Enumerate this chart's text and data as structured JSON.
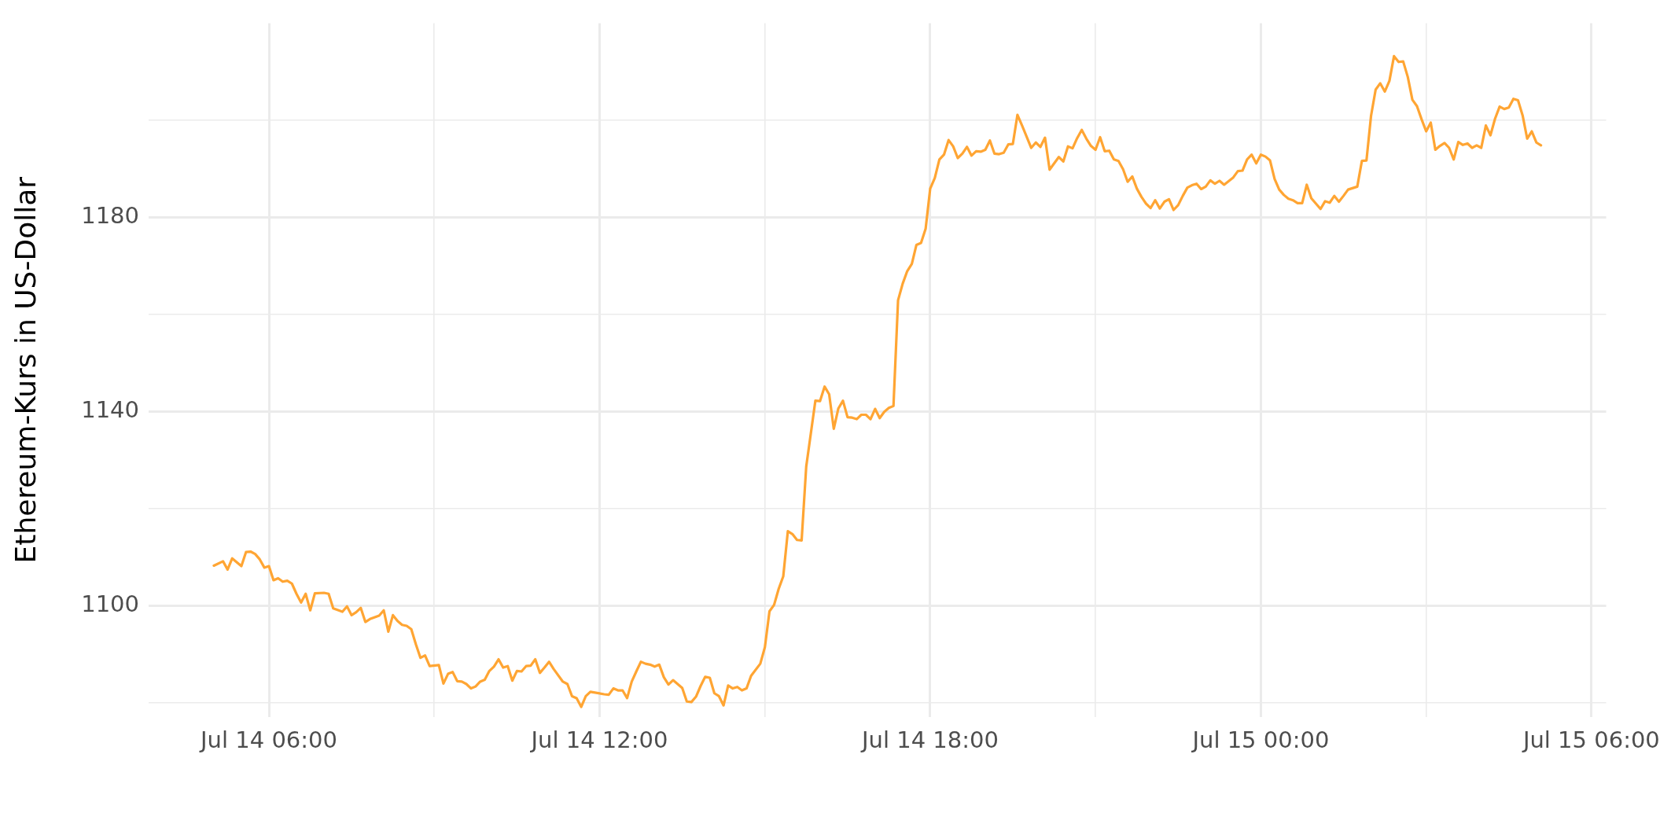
{
  "chart_data": {
    "type": "line",
    "ylabel": "Ethereum-Kurs in US-Dollar",
    "color": "#ffa533",
    "grid": true,
    "legend": false,
    "marker": "none",
    "line_style": "solid",
    "xlim": [
      "--07-14T03:49",
      "--07-15T06:16"
    ],
    "ylim": [
      1077,
      1220
    ],
    "xticks": [
      {
        "value": "--07-14T06:00",
        "label": "Jul 14 06:00"
      },
      {
        "value": "--07-14T09:00",
        "label": null
      },
      {
        "value": "--07-14T12:00",
        "label": "Jul 14 12:00"
      },
      {
        "value": "--07-14T15:00",
        "label": null
      },
      {
        "value": "--07-14T18:00",
        "label": "Jul 14 18:00"
      },
      {
        "value": "--07-14T21:00",
        "label": null
      },
      {
        "value": "--07-15T00:00",
        "label": "Jul 15 00:00"
      },
      {
        "value": "--07-15T03:00",
        "label": null
      },
      {
        "value": "--07-15T06:00",
        "label": "Jul 15 06:00"
      }
    ],
    "yticks": [
      {
        "value": 1080,
        "label": null
      },
      1100,
      {
        "value": 1120,
        "label": null
      },
      1140,
      {
        "value": 1160,
        "label": null
      },
      1180,
      {
        "value": 1200,
        "label": null
      }
    ],
    "x": [
      "--07-14T05:00",
      "--07-14T05:10",
      "--07-14T05:15",
      "--07-14T05:20",
      "--07-14T05:30",
      "--07-14T05:35",
      "--07-14T05:40",
      "--07-14T05:45",
      "--07-14T05:50",
      "--07-14T05:55",
      "--07-14T06:00",
      "--07-14T06:05",
      "--07-14T06:10",
      "--07-14T06:15",
      "--07-14T06:20",
      "--07-14T06:25",
      "--07-14T06:30",
      "--07-14T06:35",
      "--07-14T06:40",
      "--07-14T06:45",
      "--07-14T06:50",
      "--07-14T07:00",
      "--07-14T07:05",
      "--07-14T07:10",
      "--07-14T07:20",
      "--07-14T07:25",
      "--07-14T07:30",
      "--07-14T07:35",
      "--07-14T07:40",
      "--07-14T07:45",
      "--07-14T07:50",
      "--07-14T08:00",
      "--07-14T08:05",
      "--07-14T08:10",
      "--07-14T08:15",
      "--07-14T08:20",
      "--07-14T08:25",
      "--07-14T08:30",
      "--07-14T08:35",
      "--07-14T08:40",
      "--07-14T08:45",
      "--07-14T08:50",
      "--07-14T08:55",
      "--07-14T09:05",
      "--07-14T09:10",
      "--07-14T09:15",
      "--07-14T09:20",
      "--07-14T09:25",
      "--07-14T09:30",
      "--07-14T09:35",
      "--07-14T09:40",
      "--07-14T09:45",
      "--07-14T09:50",
      "--07-14T09:55",
      "--07-14T10:00",
      "--07-14T10:05",
      "--07-14T10:10",
      "--07-14T10:15",
      "--07-14T10:20",
      "--07-14T10:25",
      "--07-14T10:30",
      "--07-14T10:35",
      "--07-14T10:40",
      "--07-14T10:45",
      "--07-14T10:50",
      "--07-14T10:55",
      "--07-14T11:00",
      "--07-14T11:05",
      "--07-14T11:10",
      "--07-14T11:20",
      "--07-14T11:25",
      "--07-14T11:30",
      "--07-14T11:35",
      "--07-14T11:40",
      "--07-14T11:45",
      "--07-14T11:50",
      "--07-14T12:05",
      "--07-14T12:10",
      "--07-14T12:15",
      "--07-14T12:20",
      "--07-14T12:25",
      "--07-14T12:30",
      "--07-14T12:35",
      "--07-14T12:40",
      "--07-14T12:45",
      "--07-14T12:50",
      "--07-14T12:55",
      "--07-14T13:00",
      "--07-14T13:05",
      "--07-14T13:10",
      "--07-14T13:15",
      "--07-14T13:20",
      "--07-14T13:25",
      "--07-14T13:30",
      "--07-14T13:35",
      "--07-14T13:40",
      "--07-14T13:45",
      "--07-14T13:50",
      "--07-14T13:55",
      "--07-14T14:00",
      "--07-14T14:05",
      "--07-14T14:10",
      "--07-14T14:15",
      "--07-14T14:20",
      "--07-14T14:25",
      "--07-14T14:30",
      "--07-14T14:35",
      "--07-14T14:40",
      "--07-14T14:45",
      "--07-14T14:55",
      "--07-14T15:00",
      "--07-14T15:05",
      "--07-14T15:10",
      "--07-14T15:15",
      "--07-14T15:20",
      "--07-14T15:25",
      "--07-14T15:30",
      "--07-14T15:35",
      "--07-14T15:40",
      "--07-14T15:45",
      "--07-14T15:50",
      "--07-14T15:55",
      "--07-14T16:00",
      "--07-14T16:05",
      "--07-14T16:10",
      "--07-14T16:15",
      "--07-14T16:20",
      "--07-14T16:25",
      "--07-14T16:30",
      "--07-14T16:35",
      "--07-14T16:40",
      "--07-14T16:45",
      "--07-14T16:50",
      "--07-14T16:55",
      "--07-14T17:00",
      "--07-14T17:05",
      "--07-14T17:10",
      "--07-14T17:15",
      "--07-14T17:20",
      "--07-14T17:25",
      "--07-14T17:30",
      "--07-14T17:35",
      "--07-14T17:40",
      "--07-14T17:45",
      "--07-14T17:50",
      "--07-14T17:55",
      "--07-14T18:00",
      "--07-14T18:05",
      "--07-14T18:10",
      "--07-14T18:15",
      "--07-14T18:20",
      "--07-14T18:25",
      "--07-14T18:30",
      "--07-14T18:35",
      "--07-14T18:40",
      "--07-14T18:45",
      "--07-14T18:50",
      "--07-14T18:55",
      "--07-14T19:00",
      "--07-14T19:05",
      "--07-14T19:10",
      "--07-14T19:15",
      "--07-14T19:20",
      "--07-14T19:25",
      "--07-14T19:30",
      "--07-14T19:35",
      "--07-14T19:40",
      "--07-14T19:45",
      "--07-14T19:50",
      "--07-14T19:55",
      "--07-14T20:00",
      "--07-14T20:05",
      "--07-14T20:10",
      "--07-14T20:15",
      "--07-14T20:20",
      "--07-14T20:25",
      "--07-14T20:30",
      "--07-14T20:35",
      "--07-14T20:40",
      "--07-14T20:45",
      "--07-14T20:50",
      "--07-14T20:55",
      "--07-14T21:00",
      "--07-14T21:05",
      "--07-14T21:10",
      "--07-14T21:15",
      "--07-14T21:20",
      "--07-14T21:25",
      "--07-14T21:30",
      "--07-14T21:35",
      "--07-14T21:40",
      "--07-14T21:45",
      "--07-14T21:50",
      "--07-14T21:55",
      "--07-14T22:00",
      "--07-14T22:05",
      "--07-14T22:10",
      "--07-14T22:15",
      "--07-14T22:20",
      "--07-14T22:25",
      "--07-14T22:30",
      "--07-14T22:35",
      "--07-14T22:40",
      "--07-14T22:45",
      "--07-14T22:50",
      "--07-14T22:55",
      "--07-14T23:00",
      "--07-14T23:05",
      "--07-14T23:10",
      "--07-14T23:15",
      "--07-14T23:20",
      "--07-14T23:30",
      "--07-14T23:35",
      "--07-14T23:40",
      "--07-14T23:45",
      "--07-14T23:50",
      "--07-14T23:55",
      "--07-15T00:00",
      "--07-15T00:05",
      "--07-15T00:10",
      "--07-15T00:15",
      "--07-15T00:20",
      "--07-15T00:25",
      "--07-15T00:30",
      "--07-15T00:35",
      "--07-15T00:40",
      "--07-15T00:45",
      "--07-15T00:50",
      "--07-15T00:55",
      "--07-15T01:00",
      "--07-15T01:05",
      "--07-15T01:10",
      "--07-15T01:15",
      "--07-15T01:20",
      "--07-15T01:25",
      "--07-15T01:30",
      "--07-15T01:35",
      "--07-15T01:45",
      "--07-15T01:50",
      "--07-15T01:55",
      "--07-15T02:00",
      "--07-15T02:05",
      "--07-15T02:10",
      "--07-15T02:15",
      "--07-15T02:20",
      "--07-15T02:25",
      "--07-15T02:30",
      "--07-15T02:35",
      "--07-15T02:40",
      "--07-15T02:45",
      "--07-15T02:50",
      "--07-15T02:55",
      "--07-15T03:00",
      "--07-15T03:05",
      "--07-15T03:10",
      "--07-15T03:15",
      "--07-15T03:20",
      "--07-15T03:25",
      "--07-15T03:30",
      "--07-15T03:35",
      "--07-15T03:40",
      "--07-15T03:45",
      "--07-15T03:50",
      "--07-15T03:55",
      "--07-15T04:00",
      "--07-15T04:05",
      "--07-15T04:10",
      "--07-15T04:15",
      "--07-15T04:20",
      "--07-15T04:25",
      "--07-15T04:30",
      "--07-15T04:35",
      "--07-15T04:40",
      "--07-15T04:45",
      "--07-15T04:50",
      "--07-15T04:55",
      "--07-15T05:00",
      "--07-15T05:05"
    ],
    "values": [
      1108.2,
      1109.1,
      1107.4,
      1109.7,
      1108.1,
      1111.0,
      1111.1,
      1110.6,
      1109.5,
      1107.8,
      1108.1,
      1105.2,
      1105.6,
      1104.9,
      1105.1,
      1104.5,
      1102.4,
      1100.6,
      1102.4,
      1099.0,
      1102.5,
      1102.6,
      1102.4,
      1099.4,
      1098.7,
      1099.8,
      1098.0,
      1098.6,
      1099.5,
      1096.6,
      1097.2,
      1097.9,
      1099.0,
      1094.6,
      1098.0,
      1096.8,
      1096.0,
      1095.8,
      1095.1,
      1092.0,
      1089.2,
      1089.7,
      1087.5,
      1087.7,
      1083.9,
      1085.9,
      1086.3,
      1084.4,
      1084.3,
      1083.8,
      1082.9,
      1083.3,
      1084.3,
      1084.7,
      1086.5,
      1087.4,
      1088.9,
      1087.2,
      1087.5,
      1084.5,
      1086.5,
      1086.4,
      1087.5,
      1087.6,
      1088.9,
      1086.1,
      1087.2,
      1088.4,
      1086.9,
      1084.3,
      1083.8,
      1081.3,
      1080.9,
      1079.1,
      1081.3,
      1082.2,
      1081.7,
      1081.6,
      1082.9,
      1082.5,
      1082.5,
      1080.9,
      1084.3,
      1086.4,
      1088.4,
      1088.0,
      1087.8,
      1087.4,
      1087.8,
      1085.2,
      1083.7,
      1084.6,
      1083.8,
      1083.0,
      1080.2,
      1080.1,
      1081.2,
      1083.4,
      1085.3,
      1085.1,
      1081.9,
      1081.3,
      1079.4,
      1083.5,
      1082.9,
      1083.2,
      1082.5,
      1082.9,
      1085.5,
      1088.0,
      1091.4,
      1098.8,
      1100.1,
      1103.4,
      1106.0,
      1115.3,
      1114.7,
      1113.5,
      1113.4,
      1128.6,
      1135.4,
      1142.2,
      1142.1,
      1145.1,
      1143.5,
      1136.4,
      1140.6,
      1142.2,
      1138.8,
      1138.7,
      1138.4,
      1139.3,
      1139.3,
      1138.4,
      1140.5,
      1138.6,
      1139.9,
      1140.7,
      1141.1,
      1162.9,
      1166.3,
      1168.9,
      1170.4,
      1174.3,
      1174.7,
      1177.6,
      1185.9,
      1188.1,
      1191.9,
      1192.9,
      1195.9,
      1194.6,
      1192.2,
      1193.1,
      1194.5,
      1192.7,
      1193.6,
      1193.5,
      1193.9,
      1195.8,
      1193.1,
      1193.0,
      1193.3,
      1195.0,
      1195.1,
      1201.1,
      1198.9,
      1196.6,
      1194.3,
      1195.4,
      1194.5,
      1196.4,
      1189.8,
      1191.1,
      1192.4,
      1191.5,
      1194.6,
      1194.2,
      1196.3,
      1198.0,
      1196.2,
      1194.7,
      1193.9,
      1196.5,
      1193.6,
      1193.7,
      1191.9,
      1191.6,
      1189.9,
      1187.3,
      1188.4,
      1185.9,
      1184.2,
      1182.8,
      1181.9,
      1183.5,
      1181.8,
      1183.2,
      1183.7,
      1181.5,
      1182.5,
      1184.4,
      1186.1,
      1186.6,
      1186.9,
      1185.8,
      1186.3,
      1187.6,
      1186.9,
      1187.5,
      1186.7,
      1188.2,
      1189.5,
      1189.6,
      1191.9,
      1192.9,
      1191.1,
      1192.9,
      1192.5,
      1191.7,
      1187.9,
      1185.7,
      1184.6,
      1183.8,
      1183.5,
      1182.9,
      1182.9,
      1186.7,
      1183.9,
      1182.8,
      1181.7,
      1183.3,
      1183.0,
      1184.4,
      1183.2,
      1184.4,
      1185.7,
      1186.3,
      1191.6,
      1191.7,
      1200.9,
      1206.3,
      1207.6,
      1205.9,
      1208.1,
      1213.2,
      1212.0,
      1212.1,
      1208.9,
      1204.2,
      1202.9,
      1200.2,
      1197.7,
      1199.5,
      1193.9,
      1194.7,
      1195.3,
      1194.3,
      1191.9,
      1195.5,
      1194.9,
      1195.2,
      1194.3,
      1194.8,
      1194.3,
      1198.9,
      1196.9,
      1200.3,
      1202.8,
      1202.3,
      1202.6,
      1204.4,
      1204.1,
      1201.0,
      1196.2,
      1197.7,
      1195.4,
      1194.8
    ]
  }
}
